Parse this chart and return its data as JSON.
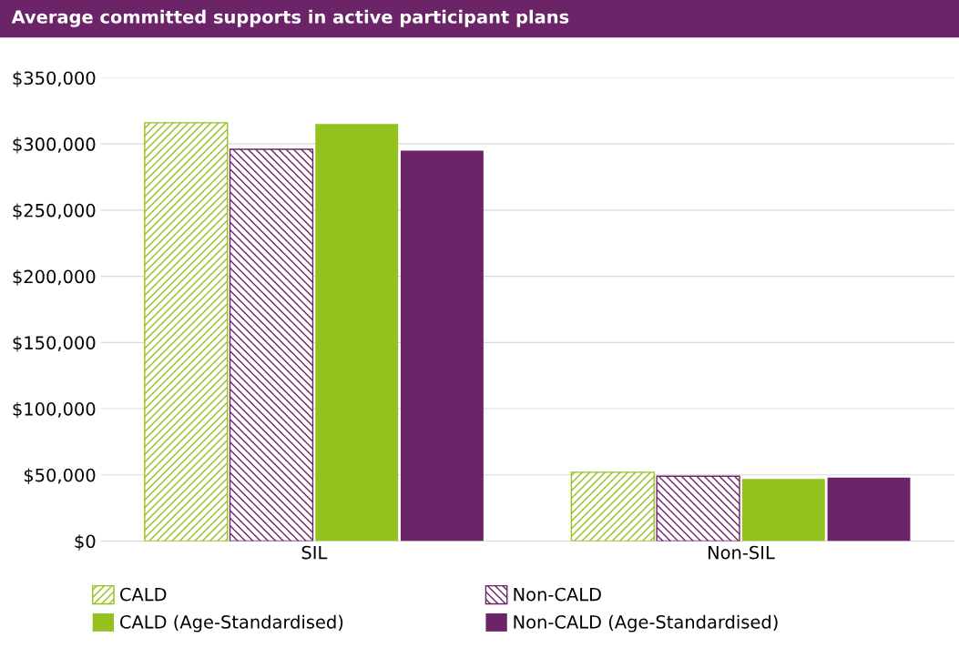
{
  "chart_data": {
    "type": "bar",
    "title": "Average committed supports in active participant plans",
    "categories": [
      "SIL",
      "Non-SIL"
    ],
    "series": [
      {
        "name": "CALD",
        "color": "#95c11f",
        "values": [
          316000,
          52000
        ]
      },
      {
        "name": "Non-CALD",
        "color": "#6c2469",
        "values": [
          296000,
          49000
        ]
      },
      {
        "name": "CALD (Age-Standardised)",
        "color": "#95c11f",
        "values": [
          315000,
          47000
        ]
      },
      {
        "name": "Non-CALD (Age-Standardised)",
        "color": "#6c2469",
        "values": [
          295000,
          48000
        ]
      }
    ],
    "ylim": [
      0,
      350000
    ],
    "yticks": [
      {
        "value": 0,
        "label": "$0"
      },
      {
        "value": 50000,
        "label": "$50,000"
      },
      {
        "value": 100000,
        "label": "$100,000"
      },
      {
        "value": 150000,
        "label": "$150,000"
      },
      {
        "value": 200000,
        "label": "$200,000"
      },
      {
        "value": 250000,
        "label": "$250,000"
      },
      {
        "value": 300000,
        "label": "$300,000"
      },
      {
        "value": 350000,
        "label": "$350,000"
      }
    ],
    "grid": "y",
    "legend": "bottom"
  }
}
